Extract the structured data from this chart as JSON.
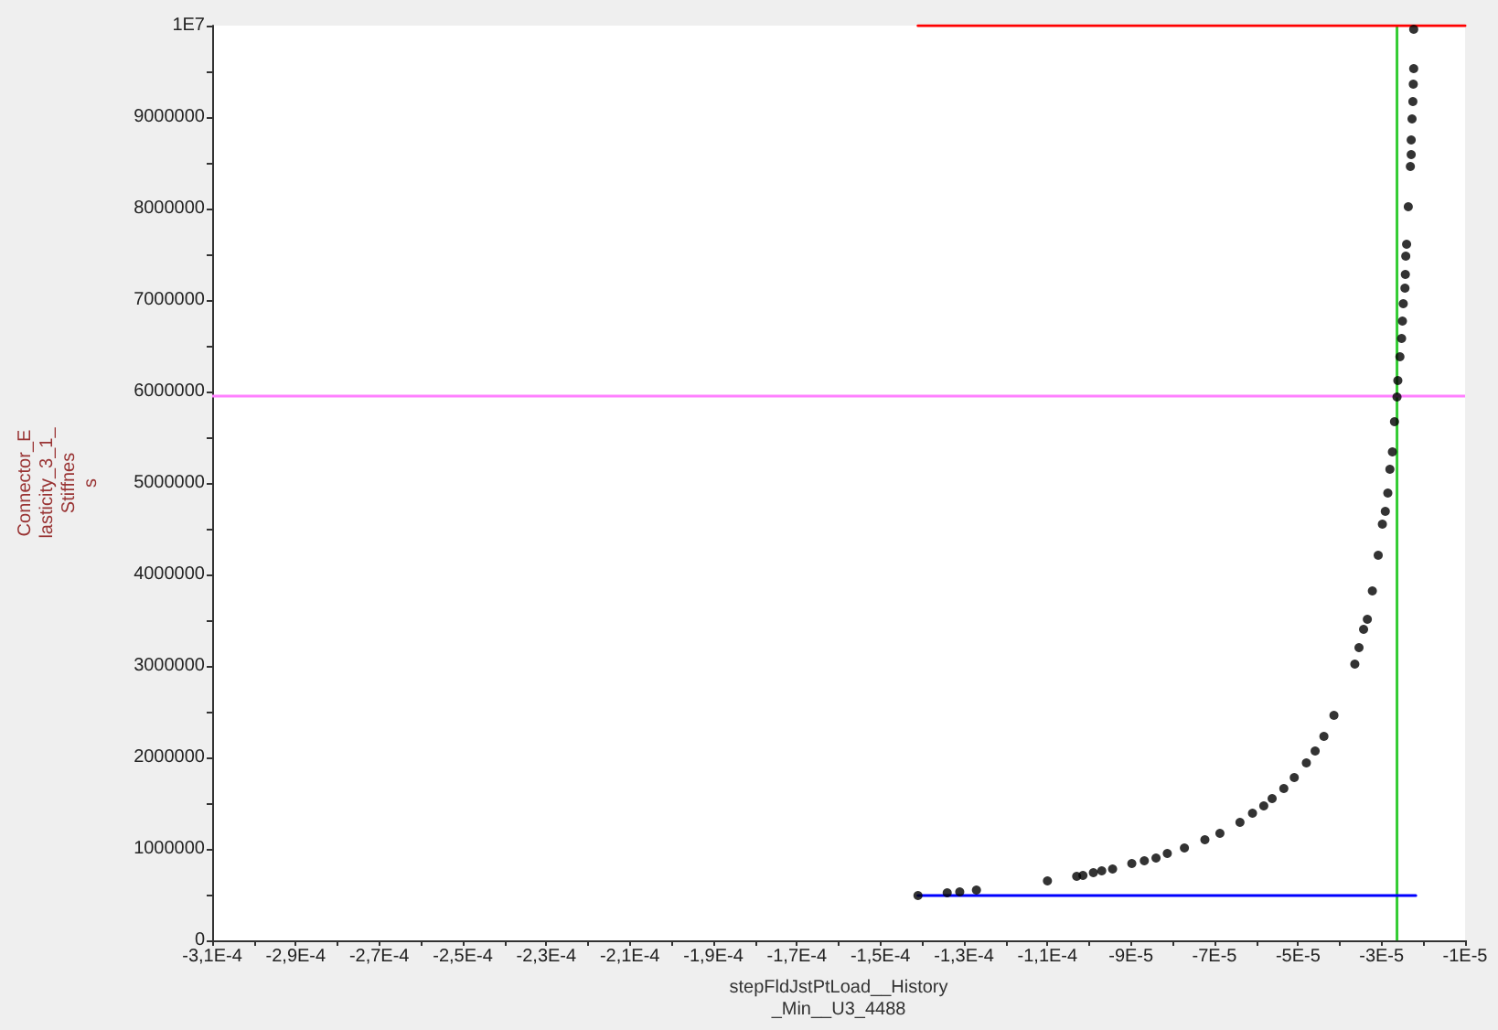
{
  "chart_data": {
    "type": "scatter",
    "xlabel": "stepFldJstPtLoad__History\n_Min__U3_4488",
    "ylabel": "Connector_E\nlasticity_3_1_\nStiffnes\ns",
    "xlim": [
      -0.00031,
      -1e-05
    ],
    "ylim": [
      0,
      10000000
    ],
    "xticks": [
      {
        "value": -0.00031,
        "label": "-3,1E-4"
      },
      {
        "value": -0.0003,
        "label": null
      },
      {
        "value": -0.00029,
        "label": "-2,9E-4"
      },
      {
        "value": -0.00028,
        "label": null
      },
      {
        "value": -0.00027,
        "label": "-2,7E-4"
      },
      {
        "value": -0.00026,
        "label": null
      },
      {
        "value": -0.00025,
        "label": "-2,5E-4"
      },
      {
        "value": -0.00024,
        "label": null
      },
      {
        "value": -0.00023,
        "label": "-2,3E-4"
      },
      {
        "value": -0.00022,
        "label": null
      },
      {
        "value": -0.00021,
        "label": "-2,1E-4"
      },
      {
        "value": -0.0002,
        "label": null
      },
      {
        "value": -0.00019,
        "label": "-1,9E-4"
      },
      {
        "value": -0.00018,
        "label": null
      },
      {
        "value": -0.00017,
        "label": "-1,7E-4"
      },
      {
        "value": -0.00016,
        "label": null
      },
      {
        "value": -0.00015,
        "label": "-1,5E-4"
      },
      {
        "value": -0.00014,
        "label": null
      },
      {
        "value": -0.00013,
        "label": "-1,3E-4"
      },
      {
        "value": -0.00012,
        "label": null
      },
      {
        "value": -0.00011,
        "label": "-1,1E-4"
      },
      {
        "value": -0.0001,
        "label": null
      },
      {
        "value": -9e-05,
        "label": "-9E-5"
      },
      {
        "value": -8e-05,
        "label": null
      },
      {
        "value": -7e-05,
        "label": "-7E-5"
      },
      {
        "value": -6e-05,
        "label": null
      },
      {
        "value": -5e-05,
        "label": "-5E-5"
      },
      {
        "value": -4e-05,
        "label": null
      },
      {
        "value": -3e-05,
        "label": "-3E-5"
      },
      {
        "value": -2e-05,
        "label": null
      },
      {
        "value": -1e-05,
        "label": "-1E-5"
      }
    ],
    "yticks": [
      0,
      {
        "value": 500000,
        "label": null
      },
      1000000,
      {
        "value": 1500000,
        "label": null
      },
      2000000,
      {
        "value": 2500000,
        "label": null
      },
      3000000,
      {
        "value": 3500000,
        "label": null
      },
      4000000,
      {
        "value": 4500000,
        "label": null
      },
      5000000,
      {
        "value": 5500000,
        "label": null
      },
      6000000,
      {
        "value": 6500000,
        "label": null
      },
      7000000,
      {
        "value": 7500000,
        "label": null
      },
      8000000,
      {
        "value": 8500000,
        "label": null
      },
      9000000,
      {
        "value": 9500000,
        "label": null
      },
      {
        "value": 10000000,
        "label": "1E7"
      }
    ],
    "grid": false,
    "series": [
      {
        "color": "#000000",
        "marker": "circle",
        "x": [
          -0.000141,
          -0.000134,
          -0.000131,
          -0.000127,
          -0.00011,
          -0.000103,
          -0.0001015,
          -9.9e-05,
          -9.7e-05,
          -9.44e-05,
          -8.98e-05,
          -8.68e-05,
          -8.4e-05,
          -8.13e-05,
          -7.72e-05,
          -7.23e-05,
          -6.87e-05,
          -6.39e-05,
          -6.09e-05,
          -5.82e-05,
          -5.62e-05,
          -5.34e-05,
          -5.09e-05,
          -4.8e-05,
          -4.59e-05,
          -4.38e-05,
          -4.14e-05,
          -3.64e-05,
          -3.54e-05,
          -3.43e-05,
          -3.34e-05,
          -3.22e-05,
          -3.08e-05,
          -2.98e-05,
          -2.91e-05,
          -2.85e-05,
          -2.8e-05,
          -2.74e-05,
          -2.69e-05,
          -2.63e-05,
          -2.61e-05,
          -2.56e-05,
          -2.52e-05,
          -2.5e-05,
          -2.48e-05,
          -2.44e-05,
          -2.43e-05,
          -2.42e-05,
          -2.4e-05,
          -2.36e-05,
          -2.31e-05,
          -2.29e-05,
          -2.29e-05,
          -2.27e-05,
          -2.25e-05,
          -2.24e-05,
          -2.23e-05,
          -2.23e-05
        ],
        "values": [
          490000,
          520000,
          530000,
          550000,
          650000,
          700000,
          710000,
          740000,
          760000,
          780000,
          840000,
          870000,
          900000,
          950000,
          1010000,
          1100000,
          1170000,
          1290000,
          1390000,
          1470000,
          1550000,
          1660000,
          1780000,
          1940000,
          2070000,
          2230000,
          2460000,
          3020000,
          3200000,
          3400000,
          3510000,
          3820000,
          4210000,
          4550000,
          4690000,
          4890000,
          5150000,
          5340000,
          5670000,
          5940000,
          6120000,
          6380000,
          6580000,
          6770000,
          6960000,
          7130000,
          7280000,
          7480000,
          7610000,
          8020000,
          8460000,
          8590000,
          8750000,
          8980000,
          9170000,
          9360000,
          9530000,
          9960000
        ]
      },
      {
        "type": "line",
        "color": "#ff0000",
        "marker": "none",
        "line_style": "solid",
        "x": [
          -0.000141,
          -1e-05
        ],
        "values": [
          10000000,
          10000000
        ]
      },
      {
        "type": "line",
        "color": "#0000ff",
        "marker": "none",
        "line_style": "solid",
        "x": [
          -0.000141,
          -2.18e-05
        ],
        "values": [
          490000,
          490000
        ]
      }
    ],
    "ref_lines": [
      {
        "axis": "x",
        "value": -2.63e-05,
        "color": "#33cc33",
        "line_style": "solid"
      },
      {
        "axis": "y",
        "value": 5950000,
        "color": "#ff80ff",
        "line_style": "solid"
      }
    ]
  }
}
